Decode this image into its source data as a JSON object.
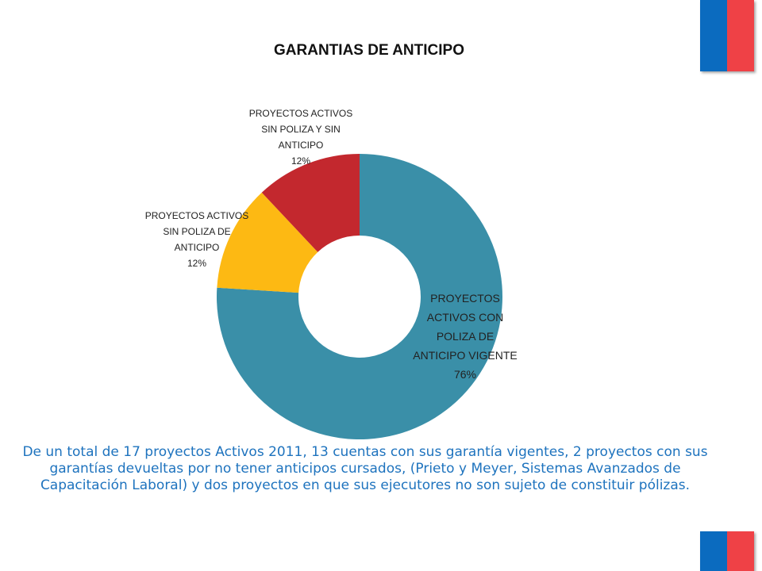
{
  "colors": {
    "flag_blue": "#0b6bbf",
    "flag_red": "#ef4146",
    "caption": "#1e73be"
  },
  "chart_data": {
    "type": "pie",
    "variant": "donut",
    "title": "GARANTIAS DE ANTICIPO",
    "slices": [
      {
        "label_lines": [
          "PROYECTOS",
          "ACTIVOS CON",
          "POLIZA DE",
          "ANTICIPO VIGENTE"
        ],
        "percent_label": "76%",
        "value": 76,
        "color": "#3a8fa8"
      },
      {
        "label_lines": [
          "PROYECTOS ACTIVOS",
          "SIN POLIZA DE",
          "ANTICIPO"
        ],
        "percent_label": "12%",
        "value": 12,
        "color": "#fdb913"
      },
      {
        "label_lines": [
          "PROYECTOS ACTIVOS",
          "SIN POLIZA Y SIN",
          "ANTICIPO"
        ],
        "percent_label": "12%",
        "value": 12,
        "color": "#c3282e"
      }
    ]
  },
  "caption": "De un total de 17 proyectos Activos 2011, 13 cuentas con sus garantía vigentes, 2 proyectos con sus garantías devueltas por no tener anticipos cursados, (Prieto y Meyer, Sistemas Avanzados de Capacitación Laboral) y dos proyectos en que sus ejecutores no son sujeto de constituir pólizas."
}
